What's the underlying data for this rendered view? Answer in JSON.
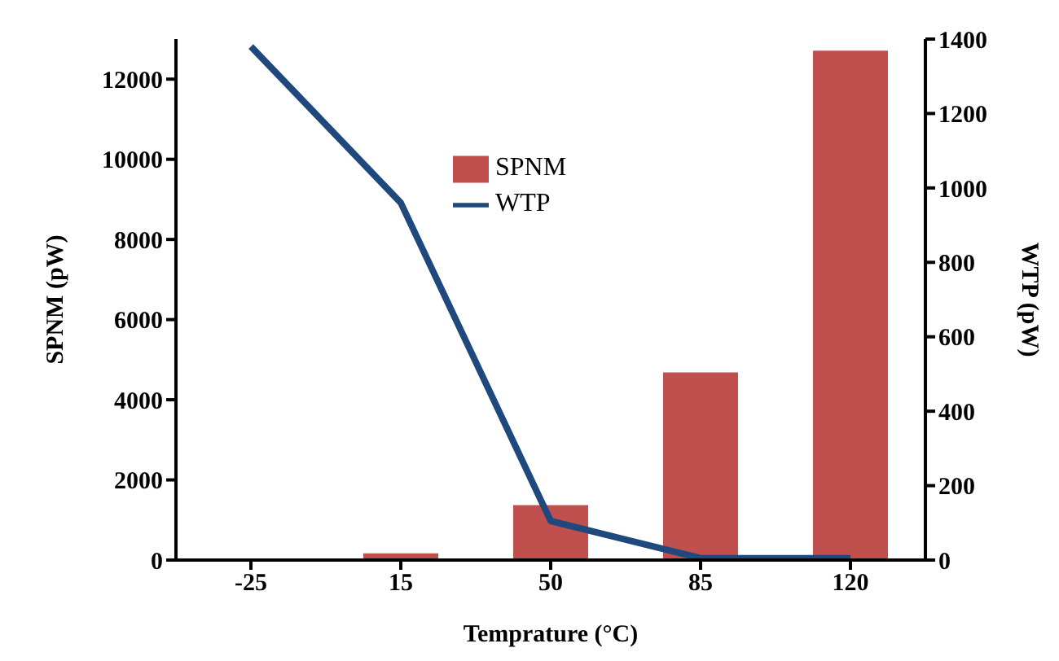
{
  "chart_data": {
    "type": "bar",
    "xlabel": "Temprature (°C)",
    "ylabel": "SPNM (pW)",
    "y2label": "WTP (pW)",
    "categories": [
      "-25",
      "15",
      "50",
      "85",
      "120"
    ],
    "series": [
      {
        "name": "SPNM",
        "color": "#c0504d",
        "values": [
          0,
          170,
          1370,
          4680,
          12710
        ]
      },
      {
        "name": "WTP",
        "type": "line",
        "axis": "y2",
        "color": "#1f497d",
        "values": [
          1380,
          960,
          105,
          5,
          5
        ]
      }
    ],
    "ylim": [
      0,
      13000
    ],
    "yticks": [
      0,
      2000,
      4000,
      6000,
      8000,
      10000,
      12000
    ],
    "y2lim": [
      0,
      1400
    ],
    "y2ticks": [
      0,
      200,
      400,
      600,
      800,
      1000,
      1200,
      1400
    ],
    "grid": false,
    "legend": "top",
    "marker": "none"
  }
}
